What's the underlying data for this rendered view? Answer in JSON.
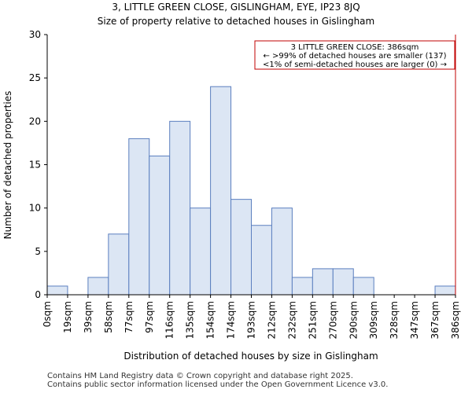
{
  "header": {
    "title": "3, LITTLE GREEN CLOSE, GISLINGHAM, EYE, IP23 8JQ",
    "subtitle": "Size of property relative to detached houses in Gislingham"
  },
  "footer": {
    "line1": "Contains HM Land Registry data © Crown copyright and database right 2025.",
    "line2": "Contains public sector information licensed under the Open Government Licence v3.0."
  },
  "colors": {
    "bar_fill": "#dce6f4",
    "bar_edge": "#5b7fbf",
    "marker": "#c00000",
    "annotation_border": "#c00000"
  },
  "chart_data": {
    "type": "bar",
    "title": "3, LITTLE GREEN CLOSE, GISLINGHAM, EYE, IP23 8JQ",
    "subtitle": "Size of property relative to detached houses in Gislingham",
    "xlabel": "Distribution of detached houses by size in Gislingham",
    "ylabel": "Number of detached properties",
    "bin_edges": [
      "0sqm",
      "19sqm",
      "39sqm",
      "58sqm",
      "77sqm",
      "97sqm",
      "116sqm",
      "135sqm",
      "154sqm",
      "174sqm",
      "193sqm",
      "212sqm",
      "232sqm",
      "251sqm",
      "270sqm",
      "290sqm",
      "309sqm",
      "328sqm",
      "347sqm",
      "367sqm",
      "386sqm"
    ],
    "values": [
      1,
      0,
      2,
      7,
      18,
      16,
      20,
      10,
      24,
      11,
      8,
      10,
      2,
      3,
      3,
      2,
      0,
      0,
      0,
      1
    ],
    "ylim": [
      0,
      30
    ],
    "yticks": [
      0,
      5,
      10,
      15,
      20,
      25,
      30
    ],
    "marker_bin_edge_index": 20,
    "annotation": {
      "line1": "3 LITTLE GREEN CLOSE: 386sqm",
      "line2": "← >99% of detached houses are smaller (137)",
      "line3": "<1% of semi-detached houses are larger (0) →"
    }
  }
}
